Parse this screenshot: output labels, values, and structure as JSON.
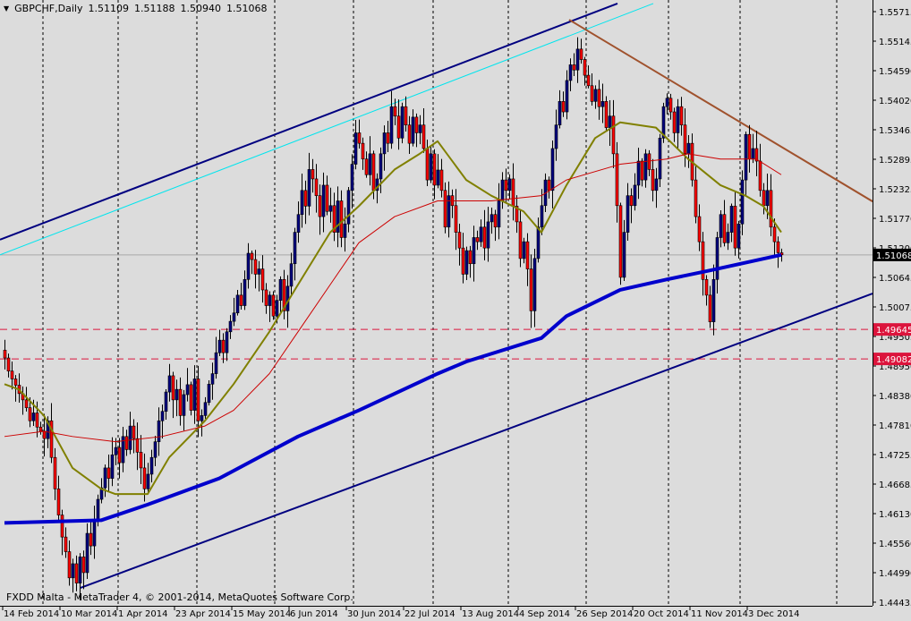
{
  "header": {
    "symbol_timeframe": "GBPCHF,Daily",
    "open": "1.51109",
    "high": "1.51188",
    "low": "1.50940",
    "close": "1.51068",
    "menu_icon": "triangle-down-icon"
  },
  "footer": {
    "copyright": "FXDD Malta - MetaTrader 4, © 2001-2014, MetaQuotes Software Corp."
  },
  "colors": {
    "background": "#dcdcdc",
    "bull_body": "#000080",
    "bear_body": "#ff0000",
    "ma_slow": "#0000cc",
    "ma_fast": "#808000",
    "ma_mid": "#cc0000",
    "channel": "#000080",
    "cyan_line": "#00e5ee",
    "resistance": "#a0522d",
    "level_line": "#dc143c",
    "level_label": "#dc143c"
  },
  "chart_data": {
    "type": "candlestick",
    "title": "GBPCHF,Daily",
    "last_bar": {
      "open": 1.51109,
      "high": 1.51188,
      "low": 1.5094,
      "close": 1.51068
    },
    "first_open": 1.4925,
    "close": [
      1.491,
      1.4885,
      1.487,
      1.4858,
      1.4842,
      1.483,
      1.4815,
      1.479,
      1.4805,
      1.4778,
      1.477,
      1.4756,
      1.479,
      1.472,
      1.466,
      1.461,
      1.4568,
      1.454,
      1.449,
      1.4517,
      1.448,
      1.453,
      1.45,
      1.4575,
      1.4551,
      1.46,
      1.464,
      1.4662,
      1.47,
      1.468,
      1.4725,
      1.4739,
      1.471,
      1.476,
      1.4735,
      1.478,
      1.4756,
      1.473,
      1.47,
      1.466,
      1.4688,
      1.472,
      1.475,
      1.479,
      1.4808,
      1.4845,
      1.4876,
      1.483,
      1.485,
      1.48,
      1.484,
      1.4859,
      1.481,
      1.487,
      1.479,
      1.48,
      1.4825,
      1.486,
      1.488,
      1.492,
      1.4944,
      1.492,
      1.496,
      1.498,
      1.4996,
      1.503,
      1.501,
      1.506,
      1.511,
      1.5098,
      1.507,
      1.508,
      1.504,
      1.501,
      1.503,
      1.499,
      1.502,
      1.506,
      1.5,
      1.5047,
      1.509,
      1.515,
      1.5184,
      1.523,
      1.52,
      1.527,
      1.5252,
      1.522,
      1.518,
      1.524,
      1.519,
      1.5201,
      1.515,
      1.521,
      1.514,
      1.5166,
      1.523,
      1.528,
      1.534,
      1.532,
      1.529,
      1.526,
      1.53,
      1.523,
      1.5252,
      1.53,
      1.534,
      1.532,
      1.539,
      1.5372,
      1.533,
      1.539,
      1.5355,
      1.532,
      1.537,
      1.534,
      1.5355,
      1.531,
      1.525,
      1.53,
      1.524,
      1.5269,
      1.523,
      1.516,
      1.522,
      1.5201,
      1.515,
      1.512,
      1.507,
      1.5115,
      1.509,
      1.514,
      1.5132,
      1.516,
      1.512,
      1.517,
      1.5184,
      1.516,
      1.521,
      1.525,
      1.523,
      1.5252,
      1.52,
      1.517,
      1.51,
      1.5132,
      1.508,
      1.5,
      1.51,
      1.516,
      1.5201,
      1.525,
      1.523,
      1.531,
      1.5355,
      1.54,
      1.538,
      1.544,
      1.547,
      1.546,
      1.55,
      1.548,
      1.545,
      1.543,
      1.54,
      1.5423,
      1.539,
      1.54,
      1.535,
      1.5372,
      1.53,
      1.5201,
      1.5064,
      1.515,
      1.522,
      1.5201,
      1.524,
      1.5286,
      1.525,
      1.53,
      1.527,
      1.523,
      1.5252,
      1.533,
      1.539,
      1.5406,
      1.538,
      1.534,
      1.539,
      1.5355,
      1.53,
      1.532,
      1.525,
      1.518,
      1.5132,
      1.506,
      1.503,
      1.4979,
      1.506,
      1.514,
      1.5184,
      1.513,
      1.515,
      1.52,
      1.512,
      1.5166,
      1.525,
      1.5337,
      1.529,
      1.531,
      1.5286,
      1.523,
      1.5201,
      1.523,
      1.516,
      1.5132,
      1.5111,
      1.5107
    ],
    "moving_averages": [
      {
        "color": "#0000cc",
        "points": [
          [
            0,
            1.4595
          ],
          [
            27,
            1.46
          ],
          [
            40,
            1.463
          ],
          [
            60,
            1.468
          ],
          [
            82,
            1.476
          ],
          [
            99,
            1.481
          ],
          [
            121,
            1.488
          ],
          [
            129,
            1.4903
          ],
          [
            150,
            1.4948
          ],
          [
            157,
            1.499
          ],
          [
            172,
            1.504
          ],
          [
            185,
            1.506
          ],
          [
            197,
            1.5077
          ],
          [
            217,
            1.5107
          ]
        ]
      },
      {
        "color": "#808000",
        "points": [
          [
            0,
            1.486
          ],
          [
            4,
            1.485
          ],
          [
            11,
            1.48
          ],
          [
            19,
            1.47
          ],
          [
            27,
            1.466
          ],
          [
            31,
            1.465
          ],
          [
            40,
            1.465
          ],
          [
            46,
            1.472
          ],
          [
            56,
            1.479
          ],
          [
            64,
            1.486
          ],
          [
            74,
            1.496
          ],
          [
            82,
            1.505
          ],
          [
            91,
            1.515
          ],
          [
            99,
            1.52
          ],
          [
            109,
            1.527
          ],
          [
            116,
            1.53
          ],
          [
            121,
            1.5324
          ],
          [
            129,
            1.525
          ],
          [
            136,
            1.522
          ],
          [
            145,
            1.519
          ],
          [
            150,
            1.515
          ],
          [
            157,
            1.524
          ],
          [
            165,
            1.533
          ],
          [
            172,
            1.536
          ],
          [
            182,
            1.535
          ],
          [
            191,
            1.529
          ],
          [
            200,
            1.524
          ],
          [
            207,
            1.522
          ],
          [
            212,
            1.52
          ],
          [
            217,
            1.515
          ]
        ]
      },
      {
        "color": "#cc0000",
        "points": [
          [
            0,
            1.476
          ],
          [
            11,
            1.477
          ],
          [
            19,
            1.476
          ],
          [
            31,
            1.475
          ],
          [
            44,
            1.476
          ],
          [
            56,
            1.478
          ],
          [
            64,
            1.481
          ],
          [
            74,
            1.488
          ],
          [
            82,
            1.496
          ],
          [
            91,
            1.505
          ],
          [
            99,
            1.513
          ],
          [
            109,
            1.518
          ],
          [
            121,
            1.521
          ],
          [
            136,
            1.521
          ],
          [
            150,
            1.522
          ],
          [
            157,
            1.525
          ],
          [
            172,
            1.528
          ],
          [
            185,
            1.529
          ],
          [
            191,
            1.53
          ],
          [
            200,
            1.529
          ],
          [
            210,
            1.529
          ],
          [
            217,
            1.526
          ]
        ]
      }
    ],
    "trendlines": [
      {
        "name": "upper-channel",
        "color": "#000080",
        "from": [
          -1.25,
          1.5136
        ],
        "to": [
          171.25,
          1.5587
        ]
      },
      {
        "name": "cyan-line",
        "color": "#00e5ee",
        "from": [
          -1.25,
          1.5107
        ],
        "to": [
          181.25,
          1.5587
        ]
      },
      {
        "name": "lower-channel",
        "color": "#000080",
        "from": [
          21.25,
          1.4471
        ],
        "to": [
          242.5,
          1.5033
        ]
      },
      {
        "name": "resistance",
        "color": "#a0522d",
        "from": [
          157.75,
          1.5556
        ],
        "to": [
          242.5,
          1.5209
        ]
      }
    ],
    "horizontal_levels": [
      1.49645,
      1.49082
    ],
    "current_price": "1.51068",
    "level_labels": [
      "1.49645",
      "1.49082"
    ],
    "y_ticks": [
      "1.55715",
      "1.55145",
      "1.54590",
      "1.54020",
      "1.53465",
      "1.52895",
      "1.52325",
      "1.51770",
      "1.51200",
      "1.50645",
      "1.50075",
      "1.49505",
      "1.48950",
      "1.48380",
      "1.47810",
      "1.47255",
      "1.46685",
      "1.46130",
      "1.45560",
      "1.44990",
      "1.44435"
    ],
    "x_ticks": [
      "14 Feb 2014",
      "10 Mar 2014",
      "1 Apr 2014",
      "23 Apr 2014",
      "15 May 2014",
      "6 Jun 2014",
      "30 Jun 2014",
      "22 Jul 2014",
      "13 Aug 2014",
      "4 Sep 2014",
      "26 Sep 2014",
      "20 Oct 2014",
      "11 Nov 2014",
      "3 Dec 2014"
    ],
    "ylim": [
      1.44435,
      1.55715
    ],
    "grid": "vertical dashed period separators"
  }
}
